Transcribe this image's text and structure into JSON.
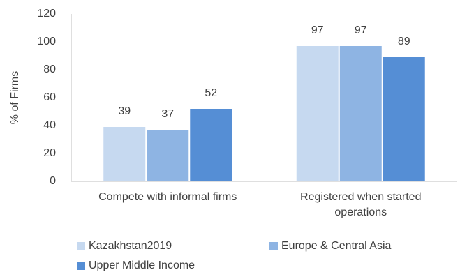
{
  "chart_data": {
    "type": "bar",
    "y_label": "% of Firms",
    "categories": [
      "Compete with informal firms",
      "Registered when started operations"
    ],
    "series": [
      {
        "name": "Kazakhstan2019",
        "color": "#c6d9f0",
        "values": [
          39,
          97
        ]
      },
      {
        "name": "Europe & Central Asia",
        "color": "#8eb4e3",
        "values": [
          37,
          97
        ]
      },
      {
        "name": "Upper Middle Income",
        "color": "#558ed5",
        "values": [
          52,
          89
        ]
      }
    ],
    "ylim": [
      0,
      120
    ],
    "yticks": [
      0,
      20,
      40,
      60,
      80,
      100,
      120
    ],
    "grid": false
  }
}
